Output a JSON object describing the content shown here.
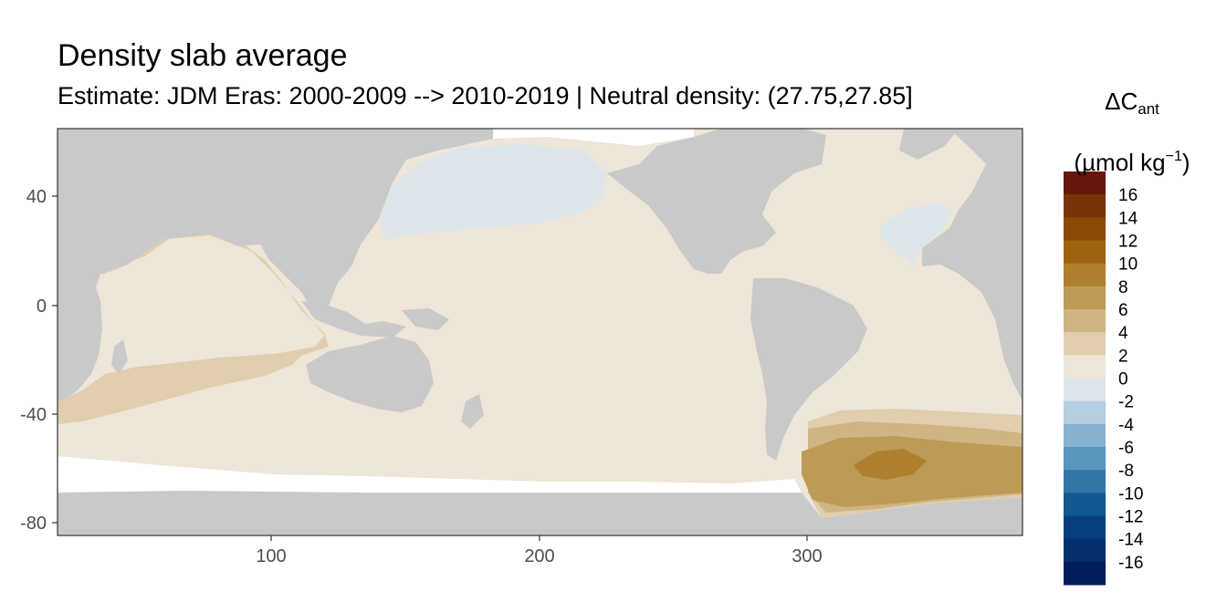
{
  "title": "Density slab average",
  "subtitle": "Estimate: JDM Eras: 2000-2009 --> 2010-2019 | Neutral density: (27.75,27.85]",
  "legend": {
    "symbol": "ΔC",
    "symbol_sub": "ant",
    "unit_open": "(µmol kg",
    "unit_sup": "−1",
    "unit_close": ")",
    "labels": [
      "16",
      "14",
      "12",
      "10",
      "8",
      "6",
      "4",
      "2",
      "0",
      "-2",
      "-4",
      "-6",
      "-8",
      "-10",
      "-12",
      "-14",
      "-16"
    ],
    "colors": [
      "#67180a",
      "#7a3308",
      "#8c4a07",
      "#9e620e",
      "#ad7f2e",
      "#bd9a55",
      "#cfb484",
      "#e0ceae",
      "#ede6d9",
      "#dde6ea",
      "#b4cfe0",
      "#86b2cf",
      "#5995bd",
      "#3275a7",
      "#0f5891",
      "#073f7f",
      "#042f6c",
      "#011d5c"
    ]
  },
  "axes": {
    "x_ticks": [
      "100",
      "200",
      "300"
    ],
    "y_ticks": [
      "40",
      "0",
      "-40",
      "-80"
    ]
  },
  "colors": {
    "land": "#c9c9c9",
    "ocean_near_zero": "#ede6d9",
    "ocean_negative": "#dde6ea",
    "ocean_2_4": "#e0ceae",
    "ocean_4_6": "#cfb484",
    "ocean_6_8": "#bd9a55",
    "ocean_8_10": "#ad7f2e",
    "no_data": "#ffffff"
  }
}
